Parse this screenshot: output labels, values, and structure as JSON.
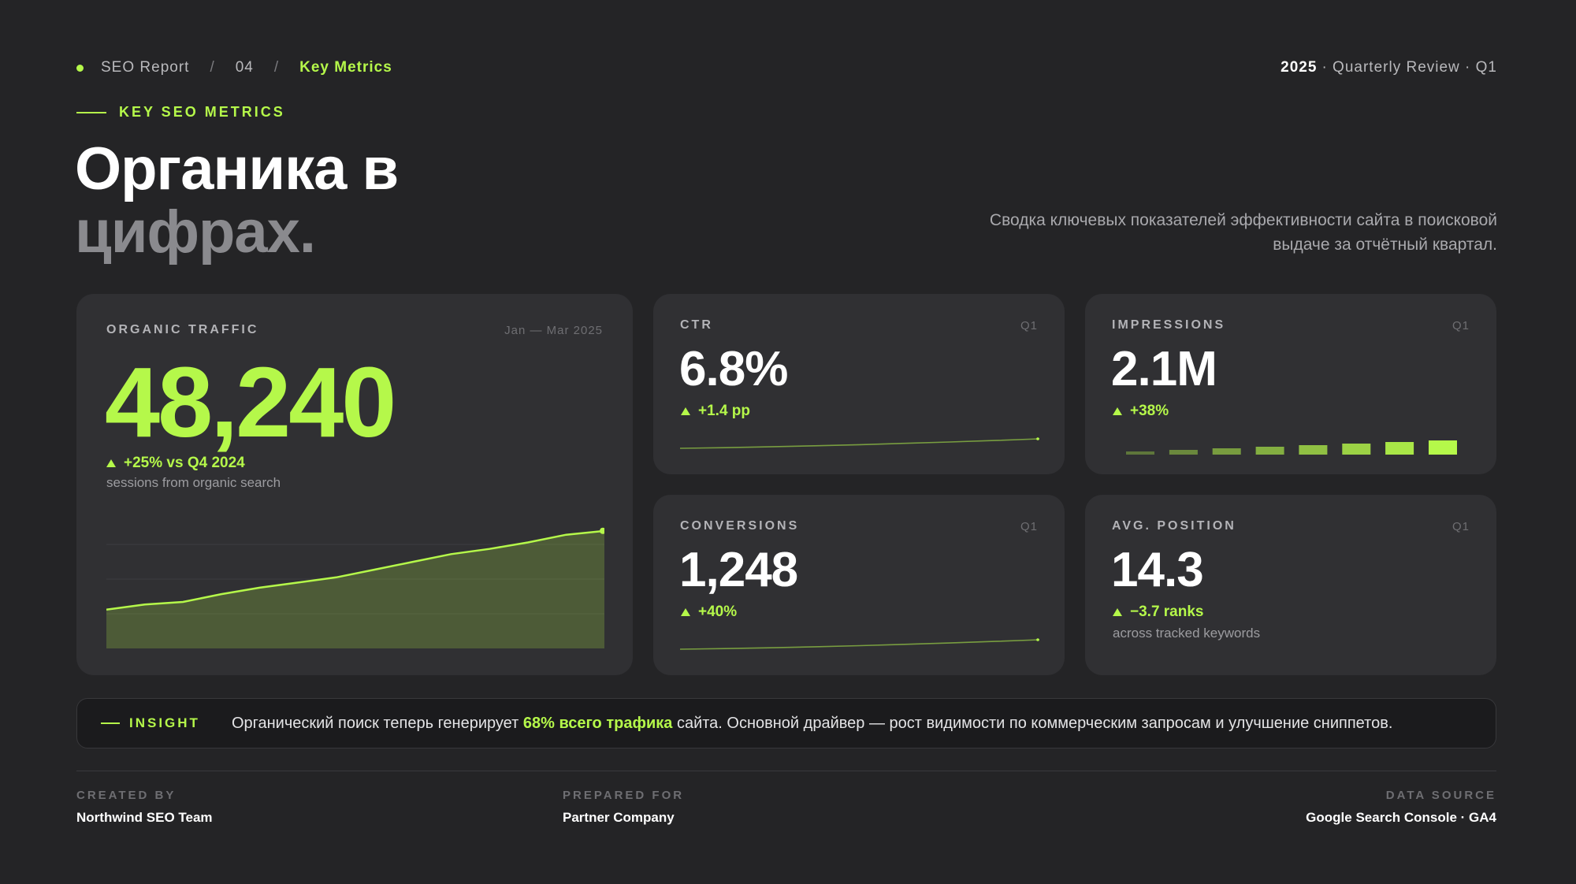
{
  "breadcrumb": {
    "report": "SEO Report",
    "sep1": "/",
    "page": "04",
    "sep2": "/",
    "current": "Key Metrics"
  },
  "header_right": {
    "year": "2025",
    "rest": "· Quarterly Review · Q1"
  },
  "section_label": "KEY SEO METRICS",
  "title": {
    "line1": "Органика в",
    "line2": "цифрах."
  },
  "subtitle": "Сводка ключевых показателей эффективности сайта в поисковой выдаче за отчётный квартал.",
  "organic": {
    "label": "ORGANIC TRAFFIC",
    "period": "Jan — Mar 2025",
    "value": "48,240",
    "delta": "+25% vs Q4 2024",
    "sub": "sessions from organic search"
  },
  "ctr": {
    "label": "CTR",
    "period": "Q1",
    "value": "6.8%",
    "delta": "+1.4 pp"
  },
  "impressions": {
    "label": "IMPRESSIONS",
    "period": "Q1",
    "value": "2.1M",
    "delta": "+38%"
  },
  "conversions": {
    "label": "CONVERSIONS",
    "period": "Q1",
    "value": "1,248",
    "delta": "+40%"
  },
  "position": {
    "label": "AVG. POSITION",
    "period": "Q1",
    "value": "14.3",
    "delta": "−3.7 ranks",
    "sub": "across tracked keywords"
  },
  "insight": {
    "tag": "INSIGHT",
    "before": "Органический поиск теперь генерирует ",
    "highlight": "68% всего трафика",
    "after": " сайта. Основной драйвер — рост видимости по коммерческим запросам и улучшение сниппетов."
  },
  "footer": {
    "created_label": "CREATED BY",
    "created_value": "Northwind SEO Team",
    "prepared_label": "PREPARED FOR",
    "prepared_value": "Partner Company",
    "source_label": "DATA SOURCE",
    "source_value": "Google Search Console · GA4"
  },
  "colors": {
    "accent": "#b5f84a",
    "background": "#242426",
    "card": "#303033"
  },
  "chart_data": [
    {
      "type": "area",
      "series": [
        {
          "values": [
            30,
            34,
            36,
            42,
            47,
            51,
            55,
            61,
            67,
            73,
            77,
            82,
            88,
            91
          ]
        }
      ]
    },
    {
      "type": "line",
      "series": [
        {
          "values": [
            10,
            10.4,
            10.9,
            11.5,
            12.2,
            13.0,
            13.8,
            14.7,
            15.7
          ]
        }
      ]
    },
    {
      "type": "bar",
      "series": [
        {
          "values": [
            1,
            2,
            3,
            4,
            5,
            6,
            7,
            8
          ]
        }
      ]
    },
    {
      "type": "line",
      "series": [
        {
          "values": [
            10,
            10.5,
            11.1,
            11.9,
            12.8,
            13.8,
            14.9,
            16.1,
            17.4
          ]
        }
      ]
    }
  ]
}
